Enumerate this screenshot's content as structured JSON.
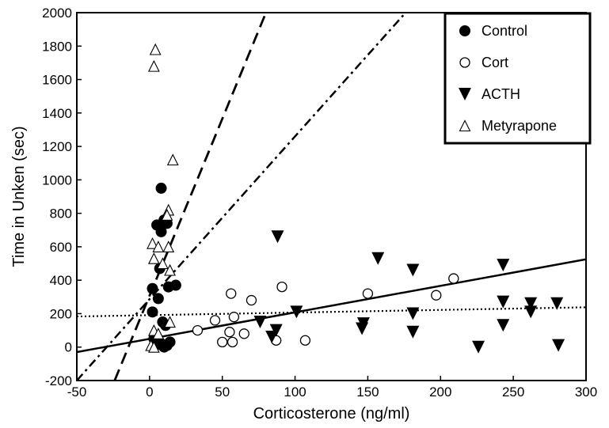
{
  "chart_data": {
    "type": "scatter",
    "xlabel": "Corticosterone (ng/ml)",
    "ylabel": "Time in Unken (sec)",
    "xlim": [
      -50,
      300
    ],
    "ylim": [
      -200,
      2000
    ],
    "xticks": [
      -50,
      0,
      50,
      100,
      150,
      200,
      250,
      300
    ],
    "yticks": [
      -200,
      0,
      200,
      400,
      600,
      800,
      1000,
      1200,
      1400,
      1600,
      1800,
      2000
    ],
    "grid": false,
    "legend": {
      "position": "top-right"
    },
    "series": [
      {
        "name": "Control",
        "marker": "filled-circle",
        "points": [
          [
            8,
            950
          ],
          [
            5,
            730
          ],
          [
            10,
            760
          ],
          [
            12,
            740
          ],
          [
            8,
            690
          ],
          [
            2,
            350
          ],
          [
            13,
            360
          ],
          [
            18,
            370
          ],
          [
            6,
            290
          ],
          [
            2,
            210
          ],
          [
            7,
            470
          ],
          [
            9,
            150
          ],
          [
            11,
            130
          ],
          [
            4,
            60
          ],
          [
            6,
            40
          ],
          [
            8,
            20
          ],
          [
            10,
            0
          ],
          [
            12,
            10
          ],
          [
            4,
            10
          ],
          [
            3,
            50
          ],
          [
            14,
            30
          ]
        ]
      },
      {
        "name": "Cort",
        "marker": "open-circle",
        "points": [
          [
            33,
            100
          ],
          [
            45,
            160
          ],
          [
            50,
            30
          ],
          [
            55,
            90
          ],
          [
            57,
            30
          ],
          [
            58,
            180
          ],
          [
            56,
            320
          ],
          [
            65,
            80
          ],
          [
            70,
            280
          ],
          [
            87,
            40
          ],
          [
            91,
            360
          ],
          [
            107,
            40
          ],
          [
            150,
            320
          ],
          [
            197,
            310
          ],
          [
            209,
            410
          ]
        ]
      },
      {
        "name": "ACTH",
        "marker": "filled-triangle-down",
        "points": [
          [
            76,
            150
          ],
          [
            84,
            60
          ],
          [
            87,
            100
          ],
          [
            88,
            660
          ],
          [
            101,
            210
          ],
          [
            146,
            110
          ],
          [
            147,
            140
          ],
          [
            157,
            530
          ],
          [
            181,
            90
          ],
          [
            181,
            200
          ],
          [
            181,
            460
          ],
          [
            226,
            0
          ],
          [
            243,
            490
          ],
          [
            243,
            270
          ],
          [
            243,
            130
          ],
          [
            262,
            260
          ],
          [
            262,
            210
          ],
          [
            280,
            260
          ],
          [
            281,
            10
          ]
        ]
      },
      {
        "name": "Metyrapone",
        "marker": "open-triangle-up",
        "points": [
          [
            4,
            1780
          ],
          [
            3,
            1680
          ],
          [
            16,
            1120
          ],
          [
            13,
            820
          ],
          [
            12,
            790
          ],
          [
            2,
            620
          ],
          [
            6,
            600
          ],
          [
            13,
            600
          ],
          [
            3,
            530
          ],
          [
            9,
            500
          ],
          [
            14,
            460
          ],
          [
            3,
            100
          ],
          [
            6,
            80
          ],
          [
            14,
            150
          ],
          [
            1,
            10
          ],
          [
            3,
            0
          ]
        ]
      }
    ],
    "fit_lines": [
      {
        "style": "dotted",
        "x": [
          -50,
          300
        ],
        "y": [
          183,
          238
        ]
      },
      {
        "style": "solid",
        "x": [
          -50,
          300
        ],
        "y": [
          -30,
          525
        ]
      },
      {
        "style": "dash-dot",
        "x": [
          -50,
          176
        ],
        "y": [
          -200,
          2000
        ]
      },
      {
        "style": "dashed",
        "x": [
          -24,
          80
        ],
        "y": [
          -200,
          2000
        ]
      }
    ]
  }
}
